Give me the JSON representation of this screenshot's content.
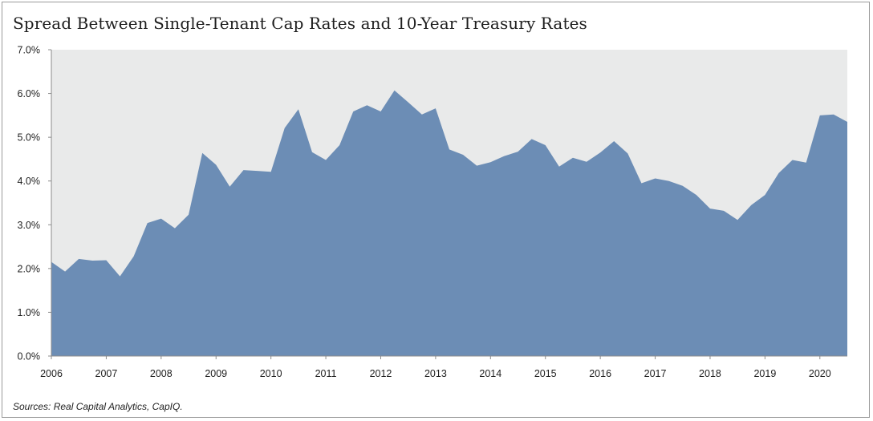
{
  "chart_data": {
    "type": "area",
    "title": "Spread Between Single-Tenant Cap Rates and 10-Year Treasury Rates",
    "source": "Sources: Real Capital Analytics, CapIQ.",
    "xlabel": "",
    "ylabel": "",
    "x_tick_labels": [
      "2006",
      "2007",
      "2008",
      "2009",
      "2010",
      "2011",
      "2012",
      "2013",
      "2014",
      "2015",
      "2016",
      "2017",
      "2018",
      "2019",
      "2020"
    ],
    "y_tick_labels": [
      "0.0%",
      "1.0%",
      "2.0%",
      "3.0%",
      "4.0%",
      "5.0%",
      "6.0%",
      "7.0%"
    ],
    "ylim": [
      0,
      7
    ],
    "xlim": [
      2006.0,
      2020.5
    ],
    "grid": false,
    "colors": {
      "fill": "#6c8db5",
      "plot_background": "#e9eaea"
    },
    "series": [
      {
        "x": [
          2006.0,
          2006.25,
          2006.5,
          2006.75,
          2007.0,
          2007.25,
          2007.5,
          2007.75,
          2008.0,
          2008.25,
          2008.5,
          2008.75,
          2009.0,
          2009.25,
          2009.5,
          2009.75,
          2010.0,
          2010.25,
          2010.5,
          2010.75,
          2011.0,
          2011.25,
          2011.5,
          2011.75,
          2012.0,
          2012.25,
          2012.5,
          2012.75,
          2013.0,
          2013.25,
          2013.5,
          2013.75,
          2014.0,
          2014.25,
          2014.5,
          2014.75,
          2015.0,
          2015.25,
          2015.5,
          2015.75,
          2016.0,
          2016.25,
          2016.5,
          2016.75,
          2017.0,
          2017.25,
          2017.5,
          2017.75,
          2018.0,
          2018.25,
          2018.5,
          2018.75,
          2019.0,
          2019.25,
          2019.5,
          2019.75,
          2020.0,
          2020.25,
          2020.5
        ],
        "values": [
          2.15,
          1.93,
          2.22,
          2.18,
          2.19,
          1.82,
          2.28,
          3.04,
          3.14,
          2.92,
          3.23,
          4.64,
          4.37,
          3.87,
          4.25,
          4.23,
          4.21,
          5.21,
          5.64,
          4.66,
          4.48,
          4.82,
          5.59,
          5.73,
          5.59,
          6.07,
          5.8,
          5.52,
          5.66,
          4.72,
          4.6,
          4.35,
          4.43,
          4.57,
          4.67,
          4.96,
          4.82,
          4.33,
          4.53,
          4.44,
          4.65,
          4.91,
          4.63,
          3.95,
          4.06,
          4.0,
          3.89,
          3.68,
          3.37,
          3.32,
          3.11,
          3.45,
          3.68,
          4.18,
          4.48,
          4.42,
          5.5,
          5.52,
          5.35
        ]
      }
    ]
  }
}
